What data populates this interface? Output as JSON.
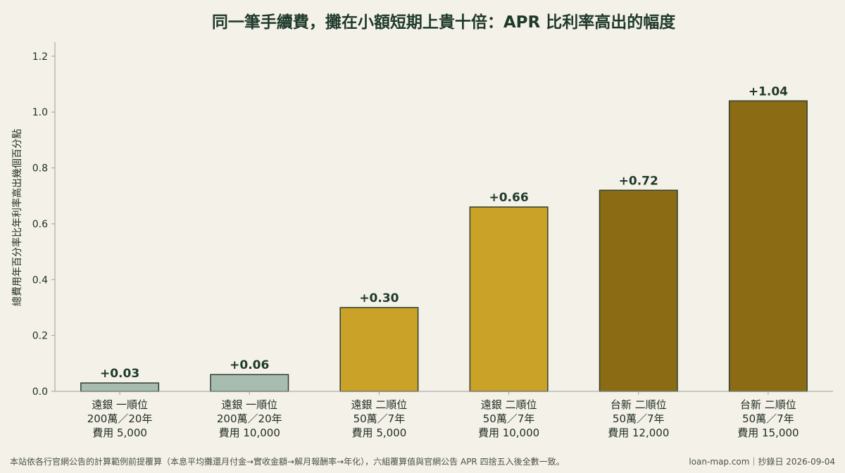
{
  "chart_data": {
    "type": "bar",
    "title": "同一筆手續費，攤在小額短期上貴十倍：APR 比利率高出的幅度",
    "ylabel": "總費用年百分率比年利率高出幾個百分點",
    "xlabel": "",
    "ylim": [
      0,
      1.25
    ],
    "yticks": [
      0.0,
      0.2,
      0.4,
      0.6,
      0.8,
      1.0,
      1.2
    ],
    "ytick_labels": [
      "0.0",
      "0.2",
      "0.4",
      "0.6",
      "0.8",
      "1.0",
      "1.2"
    ],
    "grid": false,
    "categories": [
      [
        "遠銀 一順位",
        "200萬／20年",
        "費用 5,000"
      ],
      [
        "遠銀 一順位",
        "200萬／20年",
        "費用 10,000"
      ],
      [
        "遠銀 二順位",
        "50萬／7年",
        "費用 5,000"
      ],
      [
        "遠銀 二順位",
        "50萬／7年",
        "費用 10,000"
      ],
      [
        "台新 二順位",
        "50萬／7年",
        "費用 12,000"
      ],
      [
        "台新 二順位",
        "50萬／7年",
        "費用 15,000"
      ]
    ],
    "values": [
      0.03,
      0.06,
      0.3,
      0.66,
      0.72,
      1.04
    ],
    "value_labels": [
      "+0.03",
      "+0.06",
      "+0.30",
      "+0.66",
      "+0.72",
      "+1.04"
    ],
    "bar_colors": [
      "#a8bdb1",
      "#a8bdb1",
      "#c9a227",
      "#c9a227",
      "#8b6c14",
      "#8b6c14"
    ],
    "bar_edge_color": "#2f3f30"
  },
  "footer": {
    "note": "本站依各行官網公告的計算範例前提覆算（本息平均攤還月付金→實收金額→解月報酬率→年化），六組覆算值與官網公告 APR 四捨五入後全數一致。",
    "source": "loan-map.com｜抄錄日 2026-09-04"
  }
}
